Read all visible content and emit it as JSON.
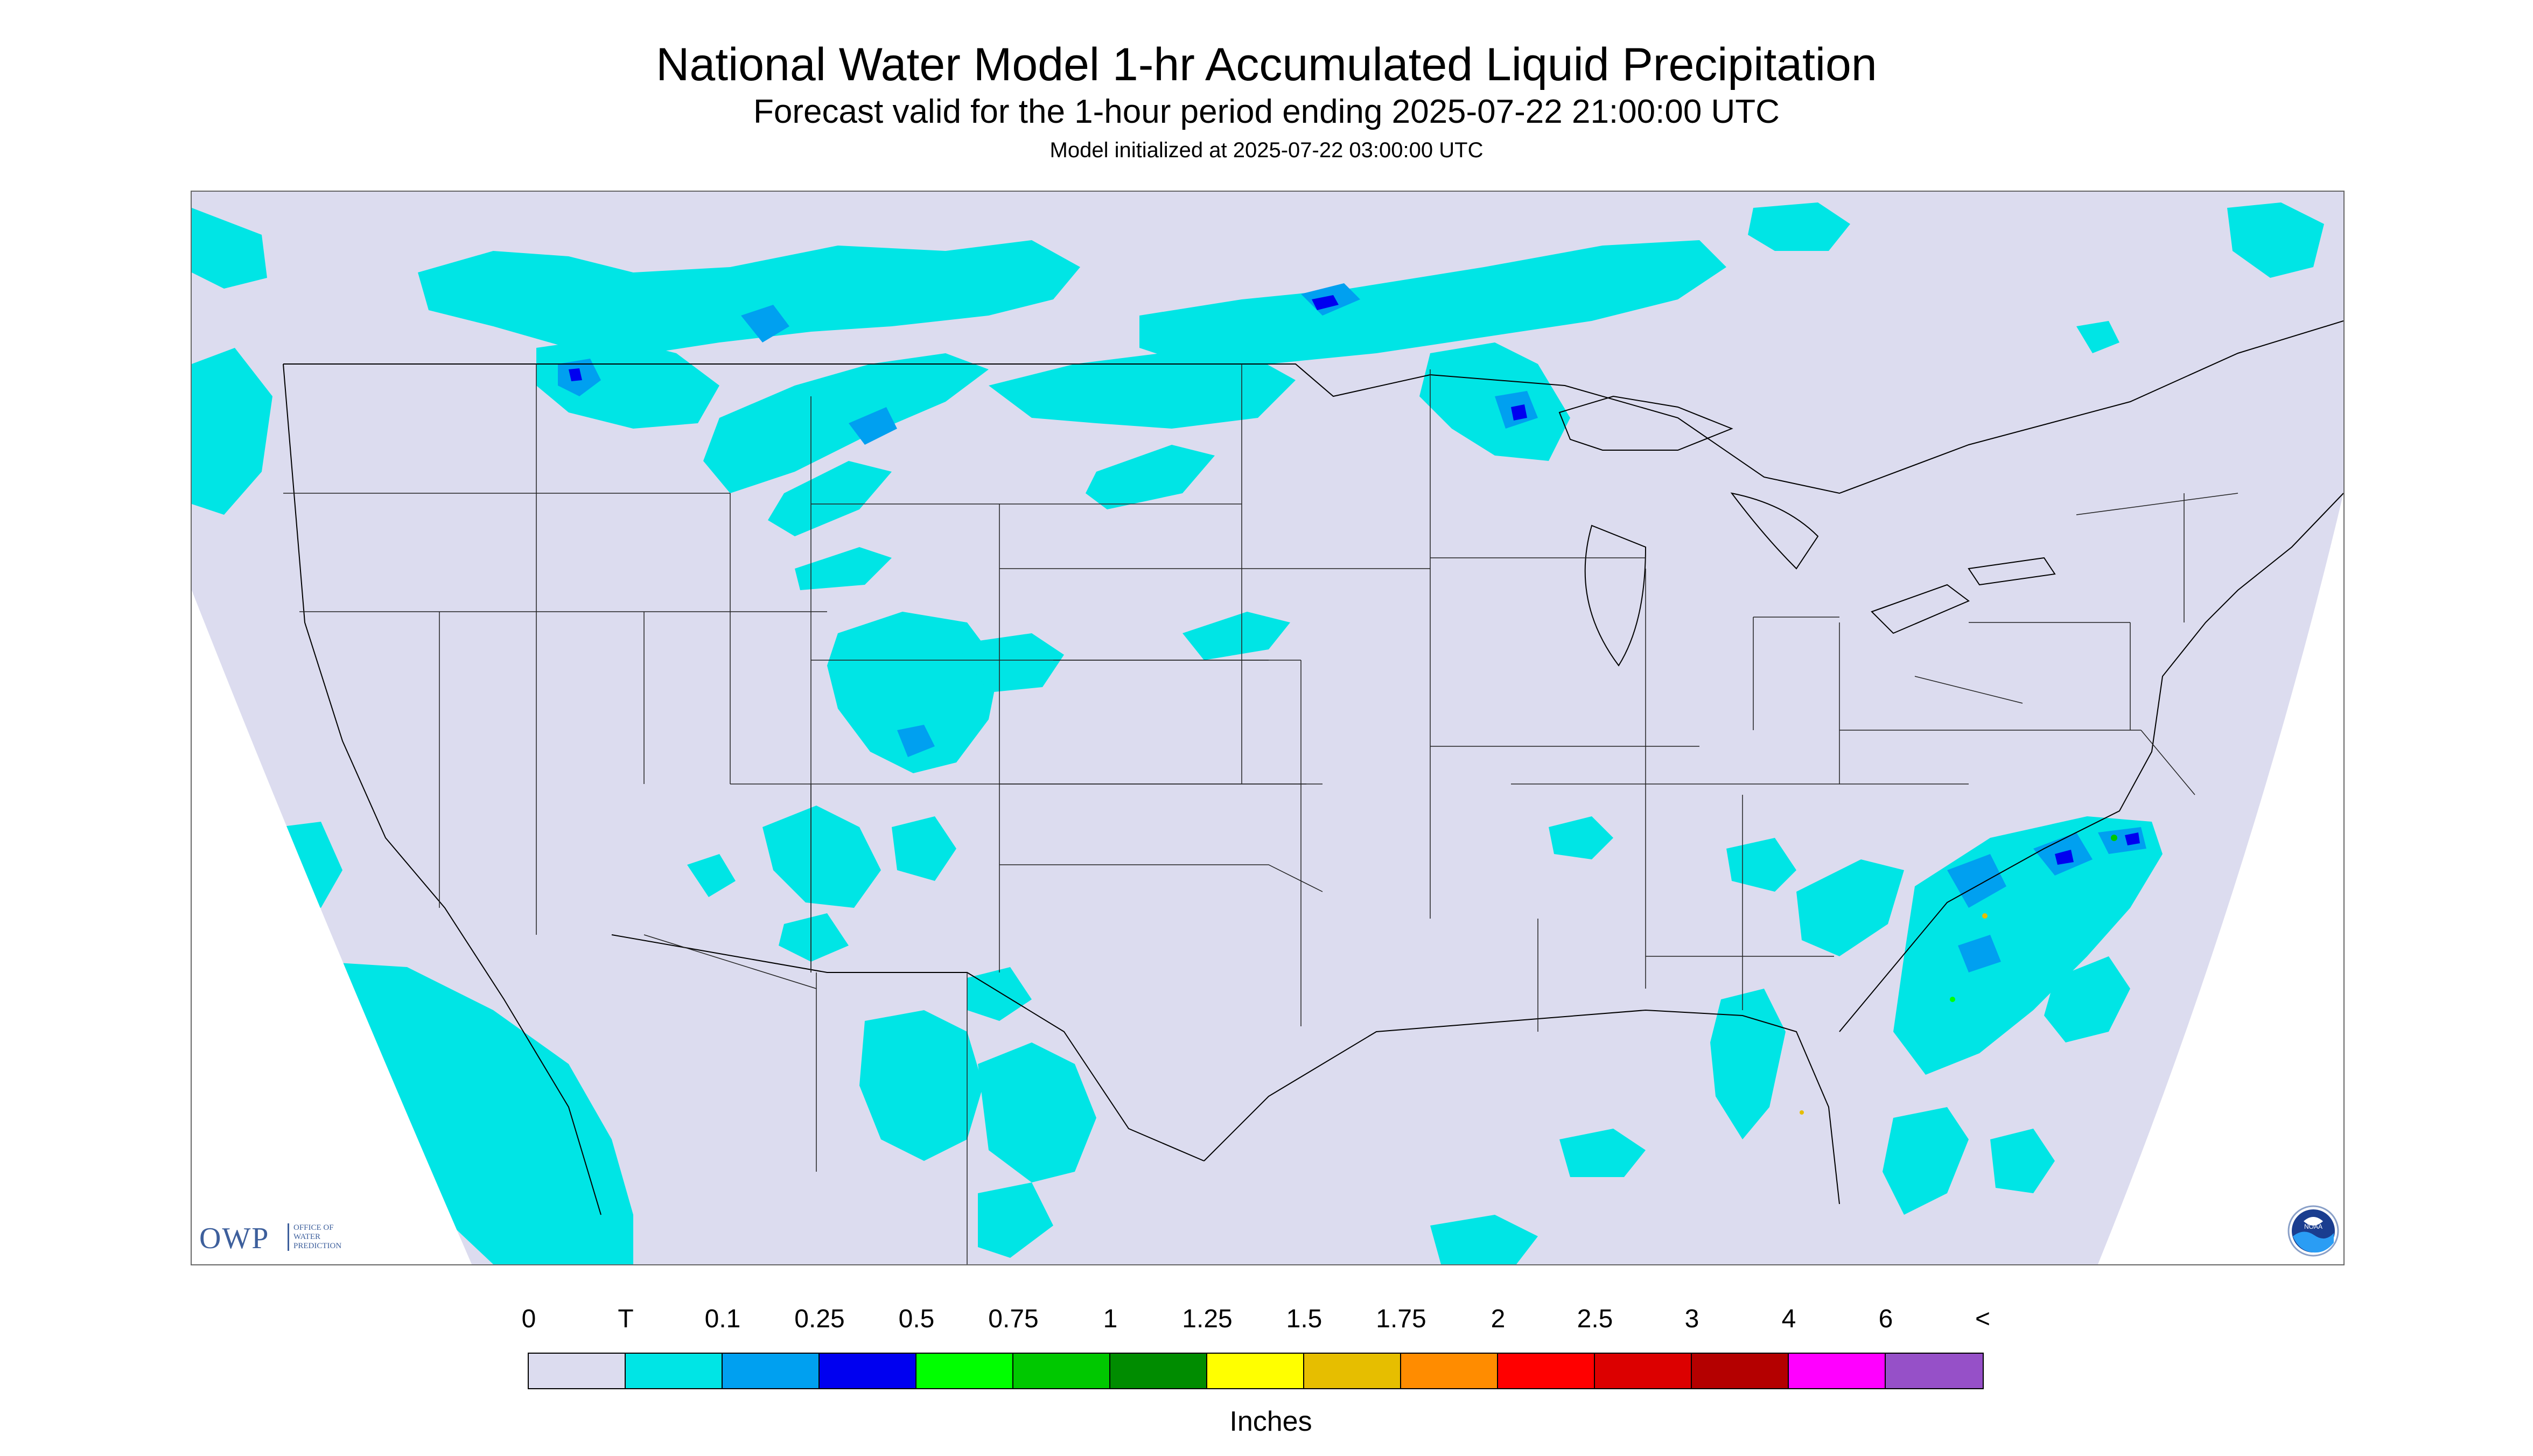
{
  "header": {
    "title": "National Water Model 1-hr Accumulated Liquid Precipitation",
    "subtitle": "Forecast valid for the 1-hour period ending 2025-07-22 21:00:00 UTC",
    "init": "Model initialized at 2025-07-22 03:00:00 UTC"
  },
  "map": {
    "background_color": "#dcdcef",
    "outside_domain_color": "#ffffff",
    "boundary_color": "#000000"
  },
  "legend": {
    "labels": [
      "0",
      "T",
      "0.1",
      "0.25",
      "0.5",
      "0.75",
      "1",
      "1.25",
      "1.5",
      "1.75",
      "2",
      "2.5",
      "3",
      "4",
      "6",
      "<"
    ],
    "colors": [
      "#dcdcef",
      "#00e5e5",
      "#00a0f0",
      "#0000f0",
      "#00ff00",
      "#00c800",
      "#008c00",
      "#ffff00",
      "#e6be00",
      "#ff8c00",
      "#ff0000",
      "#dc0000",
      "#b40000",
      "#ff00ff",
      "#9650c8"
    ],
    "units": "Inches"
  },
  "logos": {
    "owp": {
      "letters": "OWP",
      "text": "OFFICE OF\nWATER\nPREDICTION"
    },
    "noaa": {
      "text": "NOAA"
    }
  }
}
